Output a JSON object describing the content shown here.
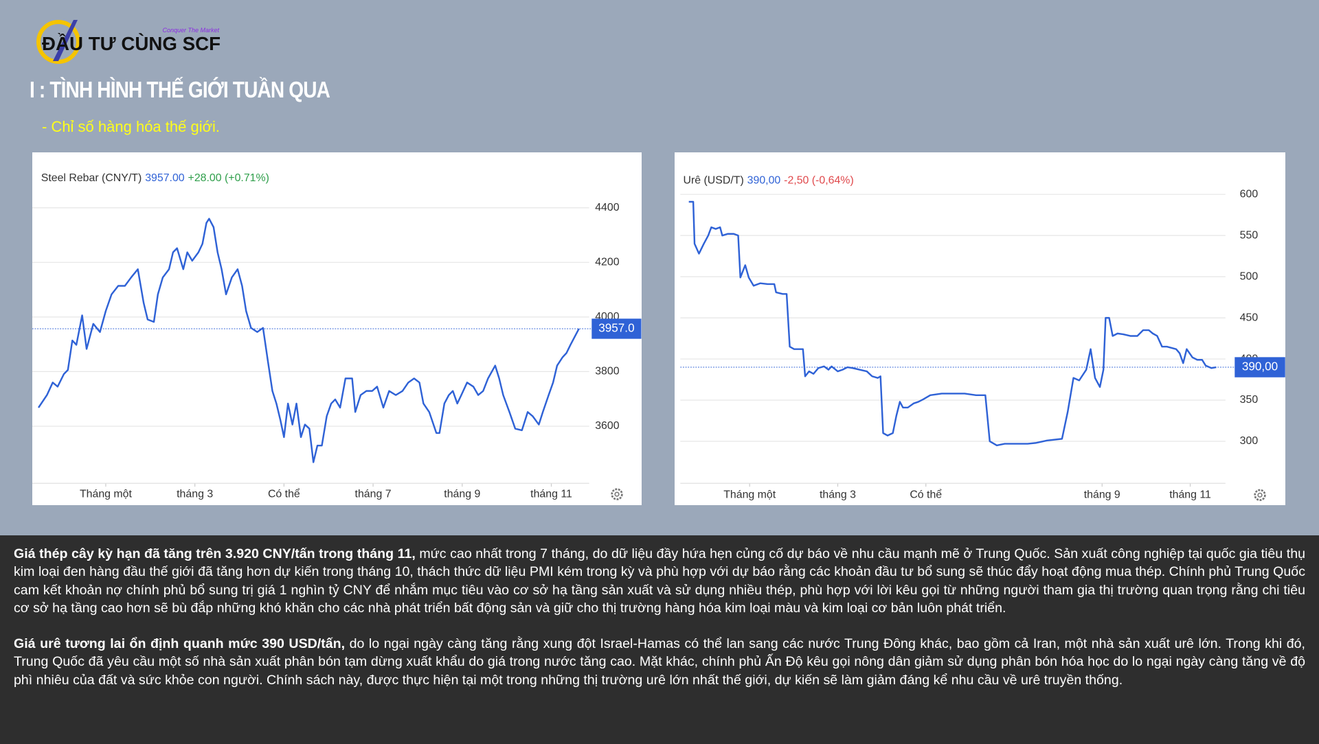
{
  "header": {
    "logo": "ĐẦU TƯ CÙNG SCF",
    "tagline": "Conquer The Market",
    "title": "I : TÌNH HÌNH THẾ GIỚI TUẦN QUA",
    "subtitle": "- Chỉ số hàng hóa thế giới."
  },
  "chart_data": [
    {
      "type": "line",
      "title": "Steel Rebar (CNY/T)",
      "price": "3957.00",
      "change": "+28.00 (+0.71%)",
      "change_color": "#2e9e4a",
      "x": [
        -0.51,
        -0.32,
        -0.19,
        -0.08,
        0.06,
        0.15,
        0.25,
        0.34,
        0.47,
        0.57,
        0.72,
        0.87,
        1.0,
        1.13,
        1.28,
        1.43,
        1.57,
        1.72,
        1.85,
        1.94,
        2.08,
        2.17,
        2.28,
        2.42,
        2.51,
        2.6,
        2.74,
        2.83,
        2.94,
        3.08,
        3.17,
        3.26,
        3.32,
        3.42,
        3.51,
        3.6,
        3.7,
        3.83,
        3.96,
        4.06,
        4.15,
        4.26,
        4.4,
        4.53,
        4.64,
        4.74,
        4.83,
        4.92,
        5.0,
        5.09,
        5.19,
        5.28,
        5.38,
        5.47,
        5.57,
        5.66,
        5.75,
        5.85,
        5.96,
        6.06,
        6.15,
        6.26,
        6.38,
        6.53,
        6.6,
        6.72,
        6.85,
        6.98,
        7.09,
        7.23,
        7.36,
        7.51,
        7.66,
        7.79,
        7.92,
        8.04,
        8.13,
        8.26,
        8.42,
        8.49,
        8.6,
        8.7,
        8.79,
        8.89,
        8.98,
        9.11,
        9.25,
        9.36,
        9.47,
        9.58,
        9.74,
        9.83,
        9.92,
        10.06,
        10.19,
        10.34,
        10.47,
        10.58,
        10.72,
        10.81,
        10.94,
        11.04,
        11.13,
        11.25,
        11.34,
        11.43,
        11.53,
        11.62
      ],
      "series": [
        {
          "color": "#2f62d6",
          "values": [
            3668,
            3714,
            3760,
            3745,
            3791,
            3806,
            3914,
            3898,
            4006,
            3883,
            3975,
            3945,
            4022,
            4083,
            4114,
            4114,
            4145,
            4175,
            4052,
            3991,
            3982,
            4083,
            4145,
            4175,
            4237,
            4252,
            4175,
            4237,
            4206,
            4237,
            4268,
            4345,
            4360,
            4329,
            4237,
            4175,
            4083,
            4145,
            4175,
            4114,
            4022,
            3960,
            3945,
            3960,
            3837,
            3729,
            3683,
            3622,
            3560,
            3683,
            3606,
            3683,
            3560,
            3606,
            3591,
            3468,
            3529,
            3529,
            3637,
            3683,
            3698,
            3668,
            3775,
            3775,
            3652,
            3714,
            3729,
            3729,
            3745,
            3668,
            3729,
            3714,
            3729,
            3760,
            3775,
            3760,
            3683,
            3652,
            3575,
            3575,
            3683,
            3714,
            3729,
            3683,
            3714,
            3760,
            3745,
            3714,
            3729,
            3775,
            3822,
            3775,
            3714,
            3652,
            3591,
            3585,
            3652,
            3637,
            3606,
            3652,
            3714,
            3760,
            3822,
            3852,
            3868,
            3898,
            3929,
            3957
          ]
        }
      ],
      "reference_line": {
        "value": 3957,
        "label": "3957.0"
      },
      "xlim": [
        -0.5,
        11.85
      ],
      "xticks": [
        {
          "value": 1,
          "label": "Tháng một"
        },
        {
          "value": 3,
          "label": "tháng 3"
        },
        {
          "value": 5,
          "label": "Có thể"
        },
        {
          "value": 7,
          "label": "tháng 7"
        },
        {
          "value": 9,
          "label": "tháng 9"
        },
        {
          "value": 11,
          "label": "tháng 11"
        }
      ],
      "ylim": [
        3400,
        4500
      ],
      "yticks": [
        3600,
        3800,
        4000,
        4200,
        4400
      ],
      "grid": true
    },
    {
      "type": "line",
      "title": "Urê (USD/T)",
      "price": "390,00",
      "change": "-2,50 (-0,64%)",
      "change_color": "#e0484b",
      "x": [
        -0.38,
        -0.28,
        -0.25,
        -0.15,
        -0.04,
        0.06,
        0.13,
        0.23,
        0.33,
        0.38,
        0.5,
        0.64,
        0.74,
        0.79,
        0.9,
        0.98,
        1.09,
        1.24,
        1.41,
        1.56,
        1.6,
        1.75,
        1.84,
        1.91,
        2.01,
        2.21,
        2.26,
        2.35,
        2.45,
        2.56,
        2.69,
        2.79,
        2.86,
        3.0,
        3.11,
        3.22,
        3.34,
        3.5,
        3.66,
        3.78,
        3.91,
        3.97,
        4.03,
        4.13,
        4.25,
        4.33,
        4.41,
        4.48,
        4.59,
        4.72,
        4.83,
        4.94,
        5.1,
        5.36,
        5.62,
        5.88,
        6.14,
        6.35,
        6.45,
        6.61,
        6.79,
        7.05,
        7.31,
        7.49,
        7.75,
        8.09,
        8.22,
        8.35,
        8.48,
        8.64,
        8.74,
        8.84,
        8.95,
        9.03,
        9.08,
        9.16,
        9.24,
        9.35,
        9.48,
        9.64,
        9.8,
        9.93,
        10.06,
        10.15,
        10.25,
        10.36,
        10.47,
        10.68,
        10.76,
        10.84,
        10.92,
        11.05,
        11.16,
        11.27,
        11.35,
        11.48,
        11.59
      ],
      "series": [
        {
          "color": "#2f62d6",
          "values": [
            591,
            591,
            540,
            528,
            540,
            550,
            560,
            558,
            560,
            550,
            552,
            552,
            550,
            499,
            514,
            499,
            489,
            492,
            491,
            491,
            481,
            479,
            479,
            415,
            412,
            412,
            379,
            385,
            382,
            389,
            391,
            387,
            391,
            385,
            387,
            390,
            389,
            387,
            385,
            379,
            377,
            379,
            310,
            307,
            310,
            331,
            348,
            341,
            341,
            346,
            348,
            351,
            356,
            358,
            358,
            358,
            356,
            356,
            300,
            295,
            297,
            297,
            297,
            298,
            301,
            303,
            336,
            377,
            374,
            387,
            412,
            377,
            366,
            387,
            450,
            450,
            428,
            431,
            430,
            428,
            428,
            435,
            435,
            431,
            428,
            415,
            415,
            412,
            407,
            395,
            412,
            402,
            399,
            399,
            392,
            389,
            390
          ]
        }
      ],
      "reference_line": {
        "value": 390,
        "label": "390,00"
      },
      "xlim": [
        -0.42,
        11.8
      ],
      "xticks": [
        {
          "value": 1,
          "label": "Tháng một"
        },
        {
          "value": 3,
          "label": "tháng 3"
        },
        {
          "value": 5,
          "label": "Có thể"
        },
        {
          "value": 9,
          "label": "tháng 9"
        },
        {
          "value": 11,
          "label": "tháng 11"
        }
      ],
      "ylim": [
        250,
        630
      ],
      "yticks": [
        300,
        350,
        400,
        450,
        500,
        550,
        600
      ],
      "grid": true
    }
  ],
  "text_panel": {
    "paragraphs": [
      {
        "lead": "Giá thép cây kỳ hạn đã tăng trên 3.920 CNY/tấn trong tháng 11,",
        "body": "mức cao nhất trong 7 tháng, do dữ liệu đầy hứa hẹn củng cố dự báo về nhu cầu mạnh mẽ ở Trung Quốc. Sản xuất công nghiệp tại quốc gia tiêu thụ kim loại đen hàng đầu thế giới đã tăng hơn dự kiến trong tháng 10, thách thức dữ liệu PMI kém trong kỳ và phù hợp với dự báo rằng các khoản đầu tư bổ sung sẽ thúc đẩy hoạt động mua thép. Chính phủ Trung Quốc cam kết khoản nợ chính phủ bổ sung trị giá 1 nghìn tỷ CNY để nhắm mục tiêu vào cơ sở hạ tầng sản xuất và sử dụng nhiều thép, phù hợp với lời kêu gọi từ những người tham gia thị trường quan trọng rằng chi tiêu cơ sở hạ tầng cao hơn sẽ bù đắp những khó khăn cho các nhà phát triển bất động sản và giữ cho thị trường hàng hóa kim loại màu và kim loại cơ bản luôn phát triển."
      },
      {
        "lead": "Giá urê tương lai ổn định quanh mức 390 USD/tấn,",
        "body": "do lo ngại ngày càng tăng rằng xung đột Israel-Hamas có thể lan sang các nước Trung Đông khác, bao gồm cả Iran, một nhà sản xuất urê lớn. Trong khi đó, Trung Quốc đã yêu cầu một số nhà sản xuất phân bón tạm dừng xuất khẩu do giá trong nước tăng cao. Mặt khác, chính phủ Ấn Độ kêu gọi nông dân giảm sử dụng phân bón hóa học do lo ngại ngày càng tăng về độ phì nhiêu của đất và sức khỏe con người. Chính sách này, được thực hiện tại một trong những thị trường urê lớn nhất thế giới, dự kiến sẽ làm giảm đáng kể nhu cầu về urê truyền thống."
      }
    ]
  }
}
